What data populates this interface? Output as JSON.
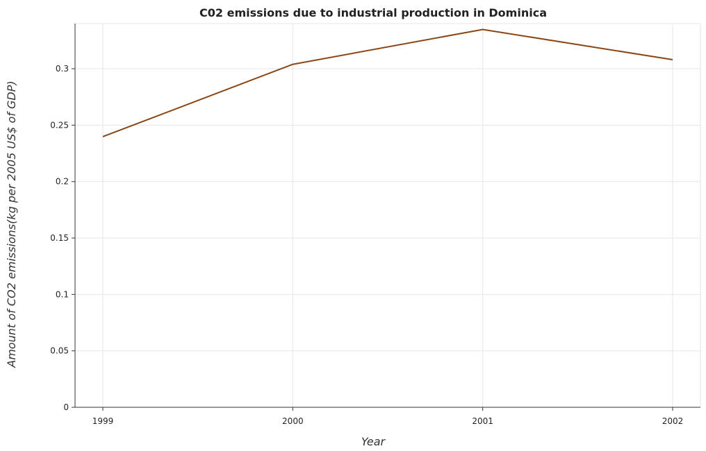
{
  "chart_data": {
    "type": "line",
    "title": "C02 emissions due to industrial production in Dominica",
    "xlabel": "Year",
    "ylabel": "Amount of CO2 emissions(kg per 2005 US$ of GDP)",
    "categories": [
      "1999",
      "2000",
      "2001",
      "2002"
    ],
    "series": [
      {
        "values": [
          0.2398,
          0.3039,
          0.3348,
          0.308
        ]
      }
    ],
    "ylim": [
      0,
      0.34
    ],
    "yticks": [
      0,
      0.05,
      0.1,
      0.15,
      0.2,
      0.25,
      0.3
    ],
    "ytick_labels": [
      "0",
      "0.05",
      "0.1",
      "0.15",
      "0.2",
      "0.25",
      "0.3"
    ],
    "grid": true,
    "legend": "none",
    "line_color": "#8B4513"
  }
}
